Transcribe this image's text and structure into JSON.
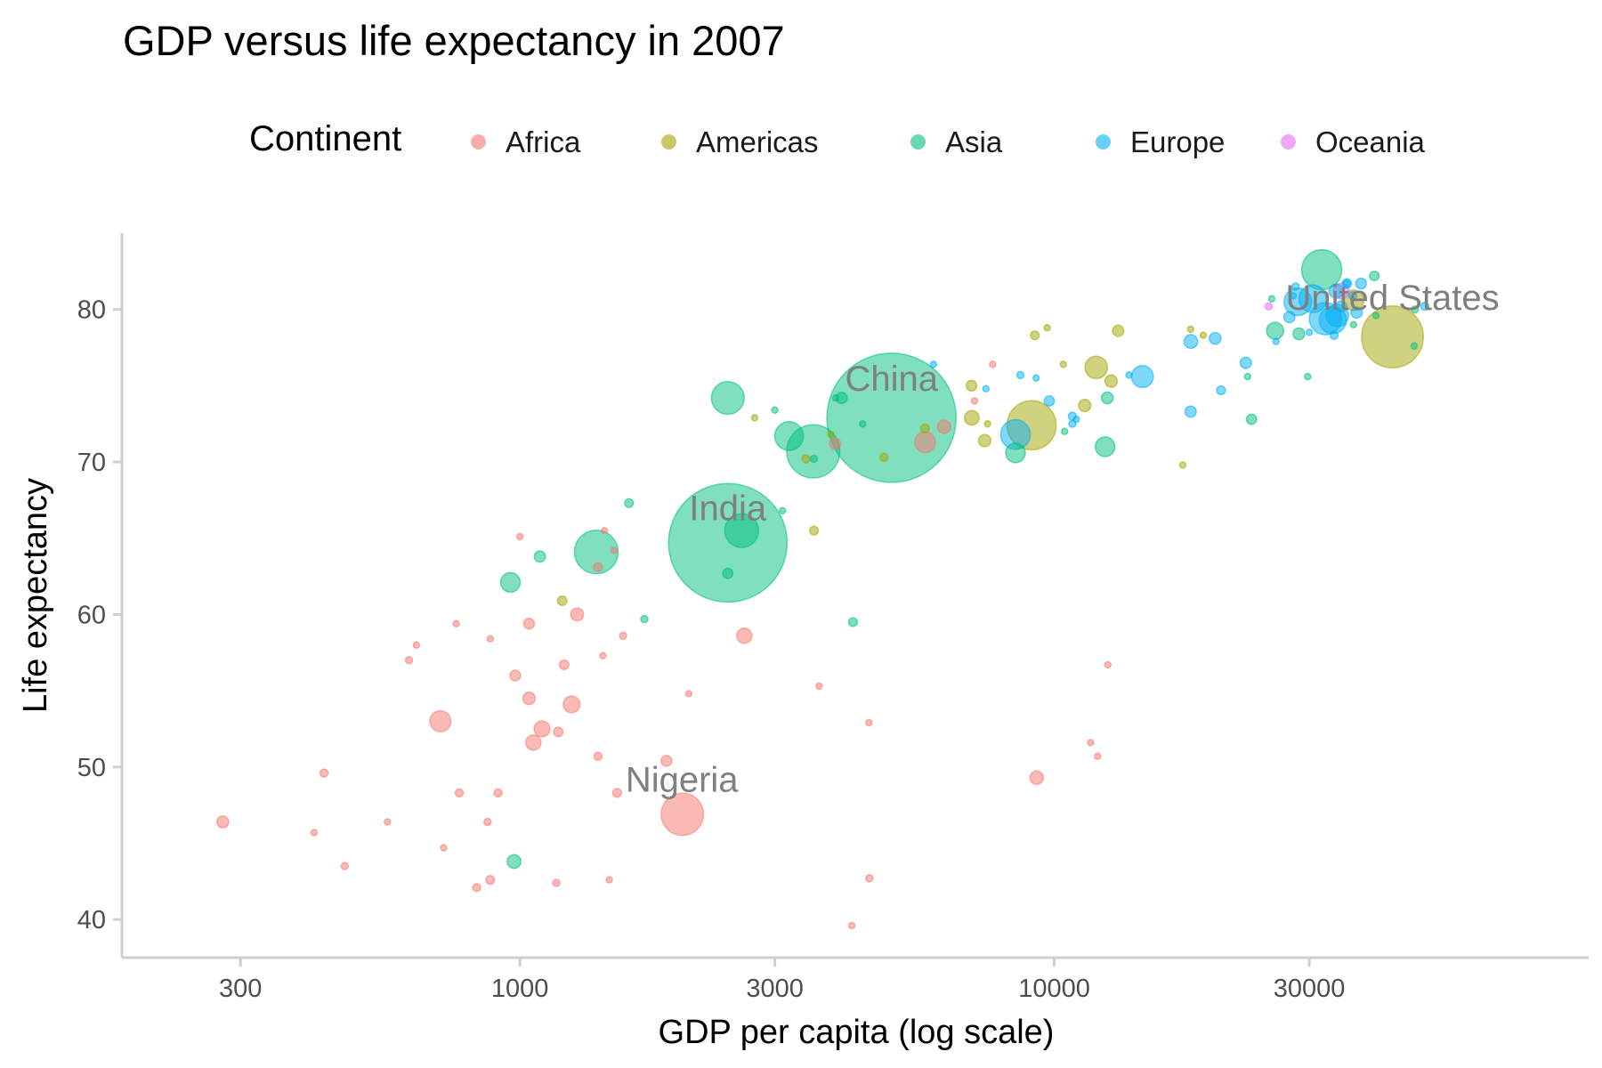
{
  "chart_data": {
    "type": "scatter",
    "title": "GDP versus life expectancy in 2007",
    "xlabel": "GDP per capita (log scale)",
    "ylabel": "Life expectancy",
    "x_scale": "log",
    "xlim": [
      180,
      100000
    ],
    "ylim": [
      37.5,
      85
    ],
    "x_ticks": [
      300,
      1000,
      3000,
      10000,
      30000
    ],
    "x_tick_labels": [
      "300",
      "1000",
      "3000",
      "10000",
      "30000"
    ],
    "y_ticks": [
      40,
      50,
      60,
      70,
      80
    ],
    "y_tick_labels": [
      "40",
      "50",
      "60",
      "70",
      "80"
    ],
    "grid": false,
    "legend": {
      "title": "Continent",
      "position": "top",
      "entries": [
        {
          "name": "Africa",
          "color": "#F8766D"
        },
        {
          "name": "Americas",
          "color": "#A3A500"
        },
        {
          "name": "Asia",
          "color": "#00BF7D"
        },
        {
          "name": "Europe",
          "color": "#00B0F6"
        },
        {
          "name": "Oceania",
          "color": "#E76BF3"
        }
      ]
    },
    "annotations": [
      {
        "label": "China",
        "x": 4960,
        "y": 75.5
      },
      {
        "label": "India",
        "x": 2450,
        "y": 67.0
      },
      {
        "label": "Nigeria",
        "x": 2010,
        "y": 49.2
      },
      {
        "label": "United States",
        "x": 42950,
        "y": 80.8
      }
    ],
    "series": [
      {
        "name": "Africa",
        "color": "#F8766D",
        "points": [
          [
            278,
            46.4,
            11
          ],
          [
            2014,
            46.9,
            140
          ],
          [
            1520,
            48.3,
            6
          ],
          [
            430,
            49.6,
            5
          ],
          [
            1880,
            50.4,
            9
          ],
          [
            710,
            53.0,
            35
          ],
          [
            1100,
            52.5,
            20
          ],
          [
            1060,
            51.6,
            18
          ],
          [
            1250,
            54.1,
            22
          ],
          [
            1210,
            56.7,
            7
          ],
          [
            1560,
            58.6,
            4
          ],
          [
            640,
            58.0,
            3
          ],
          [
            620,
            57.0,
            4
          ],
          [
            760,
            59.4,
            2
          ],
          [
            1040,
            59.4,
            9
          ],
          [
            1280,
            60.0,
            13
          ],
          [
            1400,
            63.1,
            6
          ],
          [
            1500,
            64.2,
            3
          ],
          [
            880,
            58.4,
            2
          ],
          [
            980,
            56.0,
            9
          ],
          [
            1040,
            54.5,
            12
          ],
          [
            1180,
            52.3,
            7
          ],
          [
            1430,
            57.3,
            3
          ],
          [
            910,
            48.3,
            5
          ],
          [
            770,
            48.3,
            5
          ],
          [
            870,
            46.4,
            4
          ],
          [
            720,
            44.7,
            3
          ],
          [
            565,
            46.4,
            2
          ],
          [
            412,
            45.7,
            2
          ],
          [
            470,
            43.5,
            4
          ],
          [
            880,
            42.6,
            6
          ],
          [
            830,
            42.1,
            5
          ],
          [
            1170,
            42.4,
            4
          ],
          [
            1470,
            42.6,
            2
          ],
          [
            4510,
            42.7,
            4
          ],
          [
            4180,
            39.6,
            2
          ],
          [
            4500,
            52.9,
            2
          ],
          [
            3630,
            55.3,
            3
          ],
          [
            2630,
            58.6,
            18
          ],
          [
            2070,
            54.8,
            2
          ],
          [
            1400,
            50.7,
            5
          ],
          [
            9270,
            49.3,
            14
          ],
          [
            12060,
            50.7,
            2
          ],
          [
            11700,
            51.6,
            2
          ],
          [
            12600,
            56.7,
            2
          ],
          [
            5730,
            71.3,
            34
          ],
          [
            6220,
            72.3,
            14
          ],
          [
            3890,
            71.2,
            10
          ],
          [
            7090,
            74.0,
            3
          ],
          [
            7670,
            76.4,
            2
          ],
          [
            1000,
            65.1,
            2
          ],
          [
            1440,
            65.5,
            1
          ]
        ]
      },
      {
        "name": "Americas",
        "color": "#A3A500",
        "points": [
          [
            42950,
            78.2,
            301
          ],
          [
            36320,
            80.6,
            33
          ],
          [
            12780,
            75.3,
            12
          ],
          [
            11980,
            76.2,
            40
          ],
          [
            9070,
            72.4,
            190
          ],
          [
            7010,
            72.9,
            17
          ],
          [
            7410,
            71.4,
            12
          ],
          [
            5730,
            72.2,
            6
          ],
          [
            7000,
            75.0,
            9
          ],
          [
            4800,
            70.3,
            5
          ],
          [
            3820,
            71.8,
            3
          ],
          [
            3550,
            65.5,
            6
          ],
          [
            2750,
            72.9,
            3
          ],
          [
            1200,
            60.9,
            7
          ],
          [
            3430,
            70.2,
            5
          ],
          [
            10400,
            76.4,
            3
          ],
          [
            11400,
            73.7,
            12
          ],
          [
            13170,
            78.6,
            10
          ],
          [
            18000,
            78.7,
            2
          ],
          [
            19000,
            78.3,
            2
          ],
          [
            9700,
            78.8,
            2
          ],
          [
            9200,
            78.3,
            6
          ],
          [
            7500,
            72.5,
            2
          ],
          [
            17400,
            69.8,
            2
          ]
        ]
      },
      {
        "name": "Asia",
        "color": "#00BF7D",
        "points": [
          [
            4960,
            72.9,
            1318
          ],
          [
            2450,
            64.7,
            1110
          ],
          [
            3540,
            70.7,
            223
          ],
          [
            2600,
            65.5,
            90
          ],
          [
            2450,
            74.2,
            85
          ],
          [
            3190,
            71.7,
            65
          ],
          [
            8460,
            70.6,
            30
          ],
          [
            1390,
            64.1,
            150
          ],
          [
            960,
            62.1,
            30
          ],
          [
            1090,
            63.8,
            10
          ],
          [
            1600,
            67.3,
            6
          ],
          [
            1710,
            59.7,
            4
          ],
          [
            2450,
            62.7,
            8
          ],
          [
            4200,
            59.5,
            6
          ],
          [
            975,
            43.8,
            15
          ],
          [
            3000,
            73.4,
            3
          ],
          [
            4000,
            74.2,
            10
          ],
          [
            3550,
            70.2,
            4
          ],
          [
            4380,
            72.5,
            2
          ],
          [
            3900,
            74.2,
            3
          ],
          [
            12450,
            71.0,
            30
          ],
          [
            12570,
            74.2,
            11
          ],
          [
            23390,
            72.8,
            8
          ],
          [
            25900,
            78.6,
            23
          ],
          [
            28690,
            78.4,
            11
          ],
          [
            31660,
            82.6,
            127
          ],
          [
            39720,
            82.2,
            7
          ],
          [
            47300,
            80.0,
            4
          ],
          [
            47140,
            77.6,
            2
          ],
          [
            25520,
            80.7,
            3
          ],
          [
            36300,
            79.0,
            2
          ],
          [
            23000,
            75.6,
            2
          ],
          [
            29800,
            75.6,
            2
          ],
          [
            10460,
            72.0,
            2
          ],
          [
            3100,
            66.8,
            2
          ],
          [
            40000,
            79.6,
            2
          ]
        ]
      },
      {
        "name": "Europe",
        "color": "#00B0F6",
        "points": [
          [
            32170,
            79.4,
            82
          ],
          [
            30470,
            80.7,
            61
          ],
          [
            28570,
            80.5,
            60
          ],
          [
            33200,
            79.3,
            58
          ],
          [
            33860,
            79.6,
            40
          ],
          [
            33690,
            81.2,
            16
          ],
          [
            34430,
            80.2,
            10
          ],
          [
            36180,
            80.9,
            5
          ],
          [
            37510,
            81.7,
            9
          ],
          [
            35280,
            81.7,
            7
          ],
          [
            33400,
            78.3,
            5
          ],
          [
            36800,
            79.8,
            10
          ],
          [
            49360,
            80.2,
            5
          ],
          [
            35278,
            81.7,
            4
          ],
          [
            28300,
            81.5,
            4
          ],
          [
            27540,
            79.5,
            10
          ],
          [
            20000,
            78.1,
            11
          ],
          [
            22830,
            76.5,
            10
          ],
          [
            18010,
            77.9,
            15
          ],
          [
            20510,
            74.7,
            6
          ],
          [
            14620,
            75.6,
            38
          ],
          [
            18000,
            73.3,
            10
          ],
          [
            10810,
            73.0,
            5
          ],
          [
            8640,
            75.7,
            4
          ],
          [
            9790,
            74.0,
            8
          ],
          [
            10810,
            72.5,
            4
          ],
          [
            11000,
            72.8,
            2
          ],
          [
            13800,
            75.7,
            2
          ],
          [
            7450,
            74.8,
            3
          ],
          [
            5940,
            76.4,
            2
          ],
          [
            8460,
            71.8,
            70
          ],
          [
            9250,
            75.5,
            2
          ],
          [
            26000,
            77.9,
            3
          ],
          [
            30000,
            78.5,
            2
          ],
          [
            28000,
            80.9,
            2
          ]
        ]
      },
      {
        "name": "Oceania",
        "color": "#E76BF3",
        "points": [
          [
            34440,
            81.2,
            20
          ],
          [
            25190,
            80.2,
            4
          ]
        ]
      }
    ]
  }
}
